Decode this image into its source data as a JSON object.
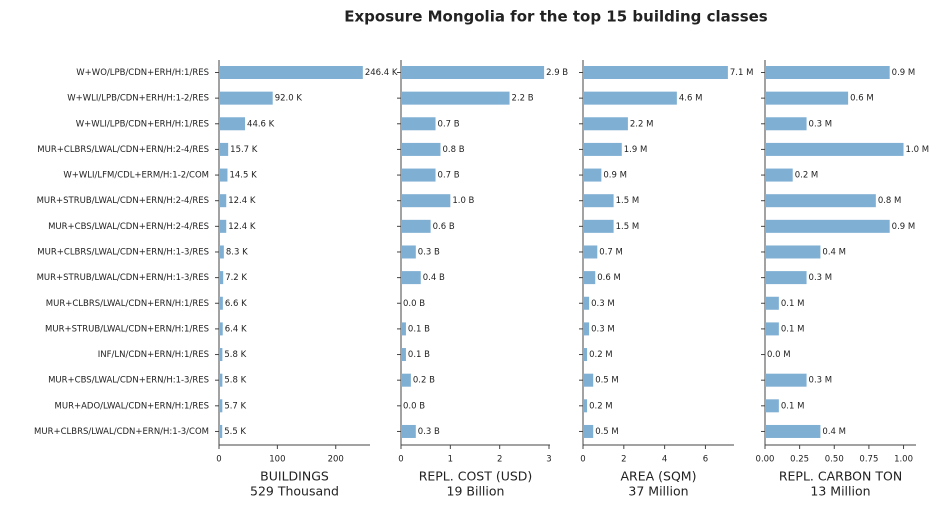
{
  "title": "Exposure Mongolia for the top 15 building classes",
  "chart_data": [
    {
      "type": "bar",
      "orientation": "horizontal",
      "color": "#7fafd3",
      "categories": [
        "W+WO/LPB/CDN+ERH/H:1/RES",
        "W+WLI/LPB/CDN+ERH/H:1-2/RES",
        "W+WLI/LPB/CDN+ERH/H:1/RES",
        "MUR+CLBRS/LWAL/CDN+ERN/H:2-4/RES",
        "W+WLI/LFM/CDL+ERM/H:1-2/COM",
        "MUR+STRUB/LWAL/CDN+ERN/H:2-4/RES",
        "MUR+CBS/LWAL/CDN+ERN/H:2-4/RES",
        "MUR+CLBRS/LWAL/CDN+ERN/H:1-3/RES",
        "MUR+STRUB/LWAL/CDN+ERN/H:1-3/RES",
        "MUR+CLBRS/LWAL/CDN+ERN/H:1/RES",
        "MUR+STRUB/LWAL/CDN+ERN/H:1/RES",
        "INF/LN/CDN+ERN/H:1/RES",
        "MUR+CBS/LWAL/CDN+ERN/H:1-3/RES",
        "MUR+ADO/LWAL/CDN+ERN/H:1/RES",
        "MUR+CLBRS/LWAL/CDN+ERN/H:1-3/COM"
      ],
      "values": [
        246.4,
        92.0,
        44.6,
        15.7,
        14.5,
        12.4,
        12.4,
        8.3,
        7.2,
        6.6,
        6.4,
        5.8,
        5.8,
        5.7,
        5.5
      ],
      "value_labels": [
        "246.4 K",
        "92.0 K",
        "44.6 K",
        "15.7 K",
        "14.5 K",
        "12.4 K",
        "12.4 K",
        "8.3 K",
        "7.2 K",
        "6.6 K",
        "6.4 K",
        "5.8 K",
        "5.8 K",
        "5.7 K",
        "5.5 K"
      ],
      "xlim": [
        0,
        258.7
      ],
      "xticks": [
        0,
        100,
        200
      ],
      "xlabel": [
        "BUILDINGS",
        "529 Thousand"
      ]
    },
    {
      "type": "bar",
      "orientation": "horizontal",
      "color": "#7fafd3",
      "values": [
        2.9,
        2.2,
        0.7,
        0.8,
        0.7,
        1.0,
        0.6,
        0.3,
        0.4,
        0.0,
        0.1,
        0.1,
        0.2,
        0.0,
        0.3
      ],
      "value_labels": [
        "2.9 B",
        "2.2 B",
        "0.7 B",
        "0.8 B",
        "0.7 B",
        "1.0 B",
        "0.6 B",
        "0.3 B",
        "0.4 B",
        "0.0 B",
        "0.1 B",
        "0.1 B",
        "0.2 B",
        "0.0 B",
        "0.3 B"
      ],
      "xlim": [
        0,
        3.02
      ],
      "xticks": [
        0,
        1,
        2,
        3
      ],
      "xlabel": [
        "REPL. COST (USD)",
        "19 Billion"
      ]
    },
    {
      "type": "bar",
      "orientation": "horizontal",
      "color": "#7fafd3",
      "values": [
        7.1,
        4.6,
        2.2,
        1.9,
        0.9,
        1.5,
        1.5,
        0.7,
        0.6,
        0.3,
        0.3,
        0.2,
        0.5,
        0.2,
        0.5
      ],
      "value_labels": [
        "7.1 M",
        "4.6 M",
        "2.2 M",
        "1.9 M",
        "0.9 M",
        "1.5 M",
        "1.5 M",
        "0.7 M",
        "0.6 M",
        "0.3 M",
        "0.3 M",
        "0.2 M",
        "0.5 M",
        "0.2 M",
        "0.5 M"
      ],
      "xlim": [
        0,
        7.4
      ],
      "xticks": [
        0,
        2,
        4,
        6
      ],
      "xlabel": [
        "AREA (SQM)",
        "37 Million"
      ]
    },
    {
      "type": "bar",
      "orientation": "horizontal",
      "color": "#7fafd3",
      "values": [
        0.9,
        0.6,
        0.3,
        1.0,
        0.2,
        0.8,
        0.9,
        0.4,
        0.3,
        0.1,
        0.1,
        0.0,
        0.3,
        0.1,
        0.4
      ],
      "value_labels": [
        "0.9 M",
        "0.6 M",
        "0.3 M",
        "1.0 M",
        "0.2 M",
        "0.8 M",
        "0.9 M",
        "0.4 M",
        "0.3 M",
        "0.1 M",
        "0.1 M",
        "0.0 M",
        "0.3 M",
        "0.1 M",
        "0.4 M"
      ],
      "xlim": [
        0,
        1.09
      ],
      "xticks": [
        {
          "value": 0,
          "label": "0.00"
        },
        {
          "value": 0.25,
          "label": "0.25"
        },
        {
          "value": 0.5,
          "label": "0.50"
        },
        {
          "value": 0.75,
          "label": "0.75"
        },
        {
          "value": 1,
          "label": "1.00"
        }
      ],
      "xlabel": [
        "REPL. CARBON TON",
        "13 Million"
      ]
    }
  ]
}
